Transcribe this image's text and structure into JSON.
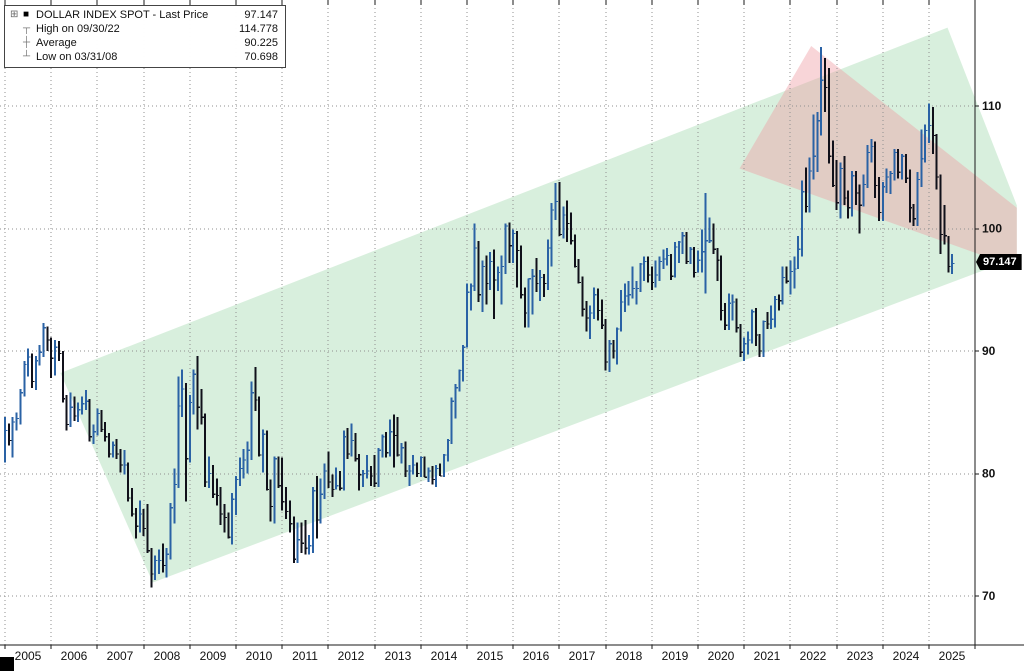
{
  "legend": {
    "grid_glyph": "⊞",
    "rows": [
      {
        "glyph": "■",
        "label": "DOLLAR INDEX SPOT - Last Price",
        "value": "97.147"
      },
      {
        "glyph": "┬",
        "label": "High on 09/30/22",
        "value": "114.778"
      },
      {
        "glyph": "┼",
        "label": "Average",
        "value": "90.225"
      },
      {
        "glyph": "┴",
        "label": "Low on 03/31/08",
        "value": "70.698"
      }
    ]
  },
  "axes": {
    "y_ticks": [
      110,
      100,
      90,
      80,
      70
    ],
    "x_years": [
      "2005",
      "2006",
      "2007",
      "2008",
      "2009",
      "2010",
      "2011",
      "2012",
      "2013",
      "2014",
      "2015",
      "2016",
      "2017",
      "2018",
      "2019",
      "2020",
      "2021",
      "2022",
      "2023",
      "2024",
      "2025"
    ],
    "last_price_label": "97.147"
  },
  "colors": {
    "up_bar": "#2a62a5",
    "down_bar": "#10101a",
    "grid": "#8f8f8f",
    "axis": "#1a1a1a",
    "badge_bg": "#000000",
    "badge_text": "#ffffff",
    "background": "#ffffff"
  },
  "chart_data": {
    "type": "bar",
    "subtype": "monthly-ohlc-bars",
    "title": "DOLLAR INDEX SPOT - Last Price",
    "last_price": 97.147,
    "high": {
      "date": "09/30/22",
      "value": 114.778
    },
    "average": 90.225,
    "low": {
      "date": "03/31/08",
      "value": 70.698
    },
    "ylim": [
      66,
      118
    ],
    "x_start": "2005-01",
    "x_end": "2025-07",
    "grid": true,
    "legend_position": "top-left",
    "monthly_hlc": {
      "2005": [
        [
          84.6,
          80.9,
          83.5
        ],
        [
          84.1,
          82.3,
          82.7
        ],
        [
          84.6,
          81.3,
          84.2
        ],
        [
          85.0,
          83.5,
          84.5
        ],
        [
          86.9,
          84.0,
          86.6
        ],
        [
          89.2,
          86.3,
          88.9
        ],
        [
          90.2,
          87.9,
          89.5
        ],
        [
          89.8,
          87.0,
          87.5
        ],
        [
          89.6,
          86.8,
          89.2
        ],
        [
          90.5,
          88.8,
          89.9
        ],
        [
          92.3,
          89.5,
          91.9
        ],
        [
          92.0,
          90.0,
          90.9
        ]
      ],
      "2006": [
        [
          91.1,
          87.8,
          89.4
        ],
        [
          90.9,
          88.0,
          90.3
        ],
        [
          90.8,
          89.2,
          89.8
        ],
        [
          90.0,
          85.8,
          86.1
        ],
        [
          86.4,
          83.5,
          84.0
        ],
        [
          86.6,
          83.8,
          85.4
        ],
        [
          86.3,
          84.3,
          84.7
        ],
        [
          85.8,
          84.2,
          85.2
        ],
        [
          86.3,
          84.8,
          85.7
        ],
        [
          86.8,
          85.2,
          85.9
        ],
        [
          86.1,
          82.6,
          83.0
        ],
        [
          84.0,
          82.4,
          83.4
        ]
      ],
      "2007": [
        [
          85.3,
          83.1,
          84.9
        ],
        [
          85.2,
          83.4,
          83.6
        ],
        [
          84.2,
          82.6,
          83.0
        ],
        [
          83.3,
          81.3,
          81.6
        ],
        [
          82.6,
          81.3,
          82.3
        ],
        [
          82.8,
          81.2,
          81.6
        ],
        [
          82.0,
          80.1,
          80.7
        ],
        [
          81.9,
          79.9,
          80.7
        ],
        [
          80.9,
          77.7,
          78.0
        ],
        [
          78.8,
          76.5,
          76.7
        ],
        [
          77.2,
          74.7,
          75.7
        ],
        [
          77.8,
          75.2,
          76.7
        ]
      ],
      "2008": [
        [
          77.1,
          74.9,
          75.5
        ],
        [
          77.5,
          73.5,
          73.7
        ],
        [
          73.9,
          70.7,
          71.8
        ],
        [
          73.3,
          71.3,
          72.9
        ],
        [
          73.8,
          71.8,
          72.9
        ],
        [
          74.3,
          71.9,
          72.5
        ],
        [
          73.9,
          71.5,
          73.4
        ],
        [
          77.6,
          73.0,
          77.2
        ],
        [
          80.4,
          75.9,
          79.1
        ],
        [
          87.9,
          78.8,
          85.5
        ],
        [
          88.5,
          84.6,
          86.9
        ],
        [
          87.4,
          77.7,
          81.2
        ]
      ],
      "2009": [
        [
          86.4,
          80.9,
          85.8
        ],
        [
          88.5,
          84.8,
          88.1
        ],
        [
          89.6,
          83.6,
          85.4
        ],
        [
          86.9,
          84.0,
          84.6
        ],
        [
          84.9,
          78.9,
          79.3
        ],
        [
          81.4,
          78.8,
          80.0
        ],
        [
          80.7,
          78.0,
          78.3
        ],
        [
          79.6,
          77.4,
          78.2
        ],
        [
          78.9,
          75.8,
          76.7
        ],
        [
          77.5,
          75.2,
          76.4
        ],
        [
          76.8,
          74.7,
          74.8
        ],
        [
          78.4,
          74.2,
          77.9
        ]
      ],
      "2010": [
        [
          79.8,
          76.6,
          79.5
        ],
        [
          81.3,
          79.0,
          80.4
        ],
        [
          82.0,
          79.6,
          81.1
        ],
        [
          82.6,
          80.0,
          81.9
        ],
        [
          87.5,
          81.1,
          86.6
        ],
        [
          88.7,
          85.1,
          86.0
        ],
        [
          86.3,
          81.4,
          81.5
        ],
        [
          83.6,
          80.1,
          83.2
        ],
        [
          83.5,
          78.6,
          78.7
        ],
        [
          79.5,
          76.1,
          77.3
        ],
        [
          81.4,
          75.9,
          81.2
        ],
        [
          81.4,
          78.8,
          79.0
        ]
      ],
      "2011": [
        [
          81.3,
          77.0,
          77.7
        ],
        [
          78.9,
          76.3,
          76.9
        ],
        [
          77.8,
          75.2,
          75.9
        ],
        [
          76.5,
          72.7,
          73.0
        ],
        [
          76.0,
          72.7,
          74.6
        ],
        [
          76.0,
          73.5,
          74.3
        ],
        [
          76.2,
          73.4,
          73.9
        ],
        [
          75.0,
          73.4,
          74.1
        ],
        [
          78.9,
          73.5,
          78.6
        ],
        [
          79.8,
          74.7,
          76.2
        ],
        [
          79.6,
          75.9,
          78.3
        ],
        [
          80.8,
          77.9,
          80.2
        ]
      ],
      "2012": [
        [
          81.8,
          78.8,
          79.3
        ],
        [
          79.9,
          78.1,
          78.7
        ],
        [
          80.5,
          78.7,
          79.0
        ],
        [
          80.2,
          78.6,
          78.8
        ],
        [
          83.5,
          78.6,
          83.0
        ],
        [
          83.7,
          81.2,
          81.6
        ],
        [
          84.1,
          81.4,
          82.7
        ],
        [
          83.3,
          81.0,
          81.2
        ],
        [
          81.6,
          78.6,
          79.9
        ],
        [
          80.3,
          78.9,
          80.0
        ],
        [
          81.5,
          79.6,
          80.2
        ],
        [
          80.6,
          79.0,
          79.8
        ]
      ],
      "2013": [
        [
          81.5,
          78.9,
          79.2
        ],
        [
          82.1,
          78.9,
          81.9
        ],
        [
          83.2,
          81.3,
          83.0
        ],
        [
          83.4,
          81.3,
          81.7
        ],
        [
          84.4,
          81.4,
          83.4
        ],
        [
          84.8,
          80.5,
          83.1
        ],
        [
          84.6,
          81.4,
          81.5
        ],
        [
          82.5,
          80.8,
          82.1
        ],
        [
          82.6,
          79.7,
          80.2
        ],
        [
          80.7,
          79.0,
          80.2
        ],
        [
          81.5,
          79.9,
          80.7
        ],
        [
          80.9,
          79.7,
          80.0
        ]
      ],
      "2014": [
        [
          81.4,
          79.7,
          81.3
        ],
        [
          81.4,
          79.7,
          79.7
        ],
        [
          80.5,
          79.3,
          80.2
        ],
        [
          80.6,
          79.1,
          79.5
        ],
        [
          80.7,
          78.9,
          80.4
        ],
        [
          80.8,
          79.8,
          79.8
        ],
        [
          81.6,
          79.7,
          81.5
        ],
        [
          82.8,
          81.0,
          82.7
        ],
        [
          86.2,
          82.4,
          85.9
        ],
        [
          87.3,
          84.5,
          87.0
        ],
        [
          88.5,
          86.7,
          88.4
        ],
        [
          90.5,
          87.5,
          90.3
        ]
      ],
      "2015": [
        [
          95.5,
          90.3,
          94.8
        ],
        [
          95.5,
          93.3,
          95.3
        ],
        [
          100.4,
          94.9,
          98.4
        ],
        [
          99.0,
          94.0,
          94.6
        ],
        [
          97.4,
          93.2,
          96.9
        ],
        [
          97.8,
          93.8,
          95.5
        ],
        [
          98.1,
          95.0,
          97.3
        ],
        [
          98.3,
          92.6,
          95.8
        ],
        [
          96.9,
          94.9,
          96.4
        ],
        [
          97.8,
          93.8,
          96.9
        ],
        [
          100.4,
          96.3,
          100.2
        ],
        [
          100.5,
          97.2,
          98.6
        ]
      ],
      "2016": [
        [
          99.9,
          97.2,
          99.6
        ],
        [
          99.8,
          95.2,
          98.2
        ],
        [
          98.6,
          94.3,
          94.6
        ],
        [
          95.2,
          91.9,
          93.1
        ],
        [
          95.9,
          91.9,
          95.9
        ],
        [
          96.7,
          93.0,
          96.1
        ],
        [
          97.6,
          94.8,
          95.5
        ],
        [
          96.6,
          94.1,
          96.0
        ],
        [
          96.3,
          94.4,
          95.5
        ],
        [
          99.1,
          95.0,
          98.4
        ],
        [
          102.1,
          96.9,
          101.5
        ],
        [
          103.7,
          100.7,
          102.2
        ]
      ],
      "2017": [
        [
          103.8,
          99.4,
          99.5
        ],
        [
          101.8,
          99.2,
          101.1
        ],
        [
          102.3,
          98.9,
          100.4
        ],
        [
          101.3,
          98.7,
          99.0
        ],
        [
          99.5,
          96.8,
          96.9
        ],
        [
          97.5,
          95.5,
          95.6
        ],
        [
          96.1,
          92.8,
          93.4
        ],
        [
          94.1,
          91.6,
          92.7
        ],
        [
          93.7,
          91.0,
          93.1
        ],
        [
          95.2,
          92.6,
          94.6
        ],
        [
          95.1,
          92.5,
          93.3
        ],
        [
          94.2,
          91.8,
          92.1
        ]
      ],
      "2018": [
        [
          92.6,
          88.4,
          89.1
        ],
        [
          90.9,
          88.3,
          90.6
        ],
        [
          90.9,
          89.4,
          90.0
        ],
        [
          91.9,
          88.9,
          91.8
        ],
        [
          95.0,
          91.6,
          94.0
        ],
        [
          95.5,
          93.2,
          94.5
        ],
        [
          95.7,
          93.7,
          94.6
        ],
        [
          96.9,
          94.3,
          95.1
        ],
        [
          95.7,
          93.8,
          95.1
        ],
        [
          97.2,
          94.8,
          97.1
        ],
        [
          97.7,
          95.7,
          97.3
        ],
        [
          97.7,
          95.6,
          96.2
        ]
      ],
      "2019": [
        [
          96.9,
          95.0,
          95.6
        ],
        [
          97.4,
          95.2,
          96.2
        ],
        [
          97.7,
          95.7,
          97.3
        ],
        [
          98.3,
          96.7,
          97.5
        ],
        [
          98.4,
          97.0,
          97.8
        ],
        [
          97.9,
          95.8,
          96.1
        ],
        [
          98.9,
          96.0,
          98.5
        ],
        [
          99.0,
          97.2,
          98.9
        ],
        [
          99.7,
          97.9,
          99.4
        ],
        [
          99.7,
          97.1,
          97.3
        ],
        [
          98.5,
          97.1,
          98.3
        ],
        [
          98.5,
          96.0,
          96.4
        ]
      ],
      "2020": [
        [
          98.2,
          96.4,
          97.4
        ],
        [
          99.9,
          96.4,
          98.1
        ],
        [
          102.9,
          94.7,
          99.0
        ],
        [
          100.9,
          98.8,
          99.0
        ],
        [
          100.4,
          97.9,
          98.3
        ],
        [
          98.4,
          95.7,
          97.4
        ],
        [
          97.8,
          92.5,
          93.3
        ],
        [
          93.9,
          91.7,
          92.1
        ],
        [
          94.7,
          91.7,
          93.9
        ],
        [
          94.6,
          92.5,
          94.0
        ],
        [
          94.3,
          91.5,
          91.9
        ],
        [
          92.2,
          89.5,
          89.9
        ]
      ],
      "2021": [
        [
          91.1,
          89.2,
          90.6
        ],
        [
          91.6,
          89.7,
          90.9
        ],
        [
          93.4,
          90.6,
          93.2
        ],
        [
          93.5,
          90.4,
          91.3
        ],
        [
          91.4,
          89.5,
          90.0
        ],
        [
          92.5,
          89.5,
          92.4
        ],
        [
          93.2,
          91.8,
          92.2
        ],
        [
          93.7,
          91.8,
          92.6
        ],
        [
          94.5,
          91.9,
          94.2
        ],
        [
          94.6,
          93.3,
          94.1
        ],
        [
          96.9,
          93.8,
          96.0
        ],
        [
          96.9,
          95.5,
          95.7
        ]
      ],
      "2022": [
        [
          97.4,
          94.6,
          96.5
        ],
        [
          97.7,
          95.1,
          96.7
        ],
        [
          99.4,
          96.7,
          98.3
        ],
        [
          103.9,
          97.7,
          103.0
        ],
        [
          105.0,
          101.3,
          101.8
        ],
        [
          105.8,
          101.3,
          104.7
        ],
        [
          109.3,
          104.0,
          105.9
        ],
        [
          109.5,
          104.6,
          108.8
        ],
        [
          114.8,
          107.6,
          112.1
        ],
        [
          113.9,
          109.5,
          111.5
        ],
        [
          113.1,
          105.3,
          105.9
        ],
        [
          107.2,
          103.4,
          103.5
        ]
      ],
      "2023": [
        [
          105.6,
          101.5,
          102.1
        ],
        [
          105.4,
          100.8,
          104.9
        ],
        [
          105.9,
          101.9,
          102.5
        ],
        [
          103.1,
          100.8,
          101.7
        ],
        [
          104.7,
          101.0,
          104.3
        ],
        [
          104.7,
          101.9,
          102.9
        ],
        [
          103.6,
          99.6,
          101.9
        ],
        [
          104.4,
          101.8,
          103.6
        ],
        [
          106.8,
          103.3,
          106.2
        ],
        [
          107.3,
          105.4,
          106.7
        ],
        [
          107.1,
          102.5,
          103.5
        ],
        [
          104.2,
          100.6,
          101.3
        ]
      ],
      "2024": [
        [
          103.8,
          100.6,
          103.4
        ],
        [
          104.9,
          102.9,
          104.2
        ],
        [
          104.7,
          102.8,
          104.5
        ],
        [
          106.5,
          103.9,
          106.2
        ],
        [
          106.5,
          104.1,
          104.6
        ],
        [
          106.1,
          104.0,
          105.9
        ],
        [
          106.1,
          103.7,
          104.1
        ],
        [
          104.8,
          100.5,
          101.7
        ],
        [
          102.0,
          100.2,
          100.8
        ],
        [
          104.6,
          100.2,
          104.0
        ],
        [
          108.1,
          103.4,
          105.7
        ],
        [
          108.5,
          105.4,
          108.0
        ]
      ],
      "2025": [
        [
          110.2,
          107.0,
          108.4
        ],
        [
          109.9,
          106.1,
          107.6
        ],
        [
          107.7,
          103.2,
          104.2
        ],
        [
          104.4,
          97.9,
          99.5
        ],
        [
          101.9,
          98.7,
          99.4
        ],
        [
          99.4,
          96.4,
          96.9
        ],
        [
          97.9,
          96.3,
          97.147
        ]
      ]
    },
    "channels": [
      {
        "name": "upward-green-channel",
        "fill": "#7ecb8f",
        "opacity": 0.3,
        "points": [
          [
            2006.2,
            88.2
          ],
          [
            2025.4,
            116.4
          ],
          [
            2026.9,
            101.9
          ],
          [
            2026.9,
            97.6
          ],
          [
            2008.2,
            71.1
          ]
        ]
      },
      {
        "name": "downward-red-channel",
        "fill": "#ef9aa2",
        "opacity": 0.42,
        "points": [
          [
            2020.9,
            104.9
          ],
          [
            2022.45,
            114.9
          ],
          [
            2026.9,
            101.7
          ],
          [
            2026.9,
            96.8
          ]
        ]
      }
    ]
  }
}
